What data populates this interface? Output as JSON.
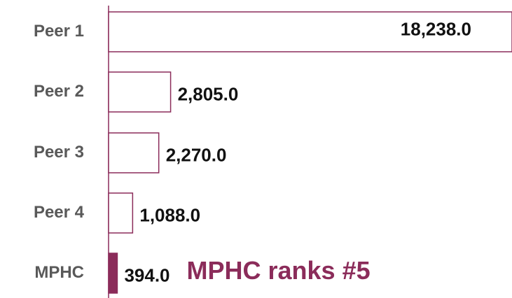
{
  "chart_data": {
    "type": "bar",
    "orientation": "horizontal",
    "categories": [
      "Peer 1",
      "Peer 2",
      "Peer 3",
      "Peer 4",
      "MPHC"
    ],
    "values": [
      18238,
      2805,
      2270,
      1088,
      394
    ],
    "value_labels": [
      "18,238.0",
      "2,805.0",
      "2,270.0",
      "1,088.0",
      "394.0"
    ],
    "color": "#8b2c5a",
    "highlight_category": "MPHC",
    "xlim": [
      0,
      18238
    ],
    "annotation": "MPHC ranks #5"
  }
}
